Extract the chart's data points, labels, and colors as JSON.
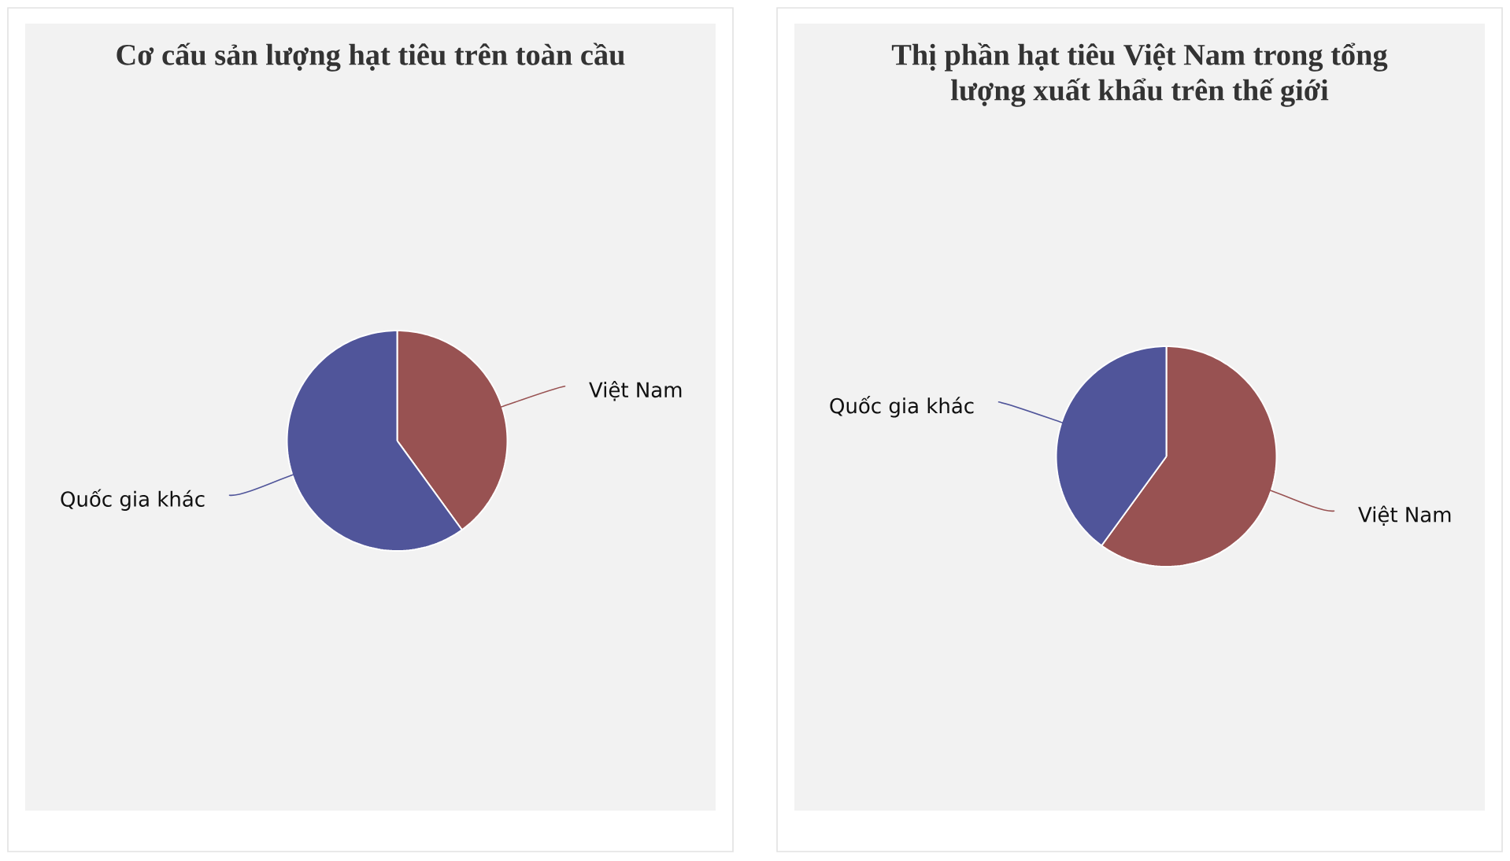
{
  "chart_data": [
    {
      "type": "pie",
      "title": "Cơ cấu sản lượng hạt tiêu trên toàn cầu",
      "categories": [
        "Việt Nam",
        "Quốc gia khác"
      ],
      "values": [
        40,
        60
      ],
      "colors": [
        "#985252",
        "#50559a"
      ]
    },
    {
      "type": "pie",
      "title": "Thị phần hạt tiêu Việt Nam trong tổng lượng xuất khẩu trên thế giới",
      "categories": [
        "Việt Nam",
        "Quốc gia khác"
      ],
      "values": [
        60,
        40
      ],
      "colors": [
        "#985252",
        "#50559a"
      ]
    }
  ]
}
